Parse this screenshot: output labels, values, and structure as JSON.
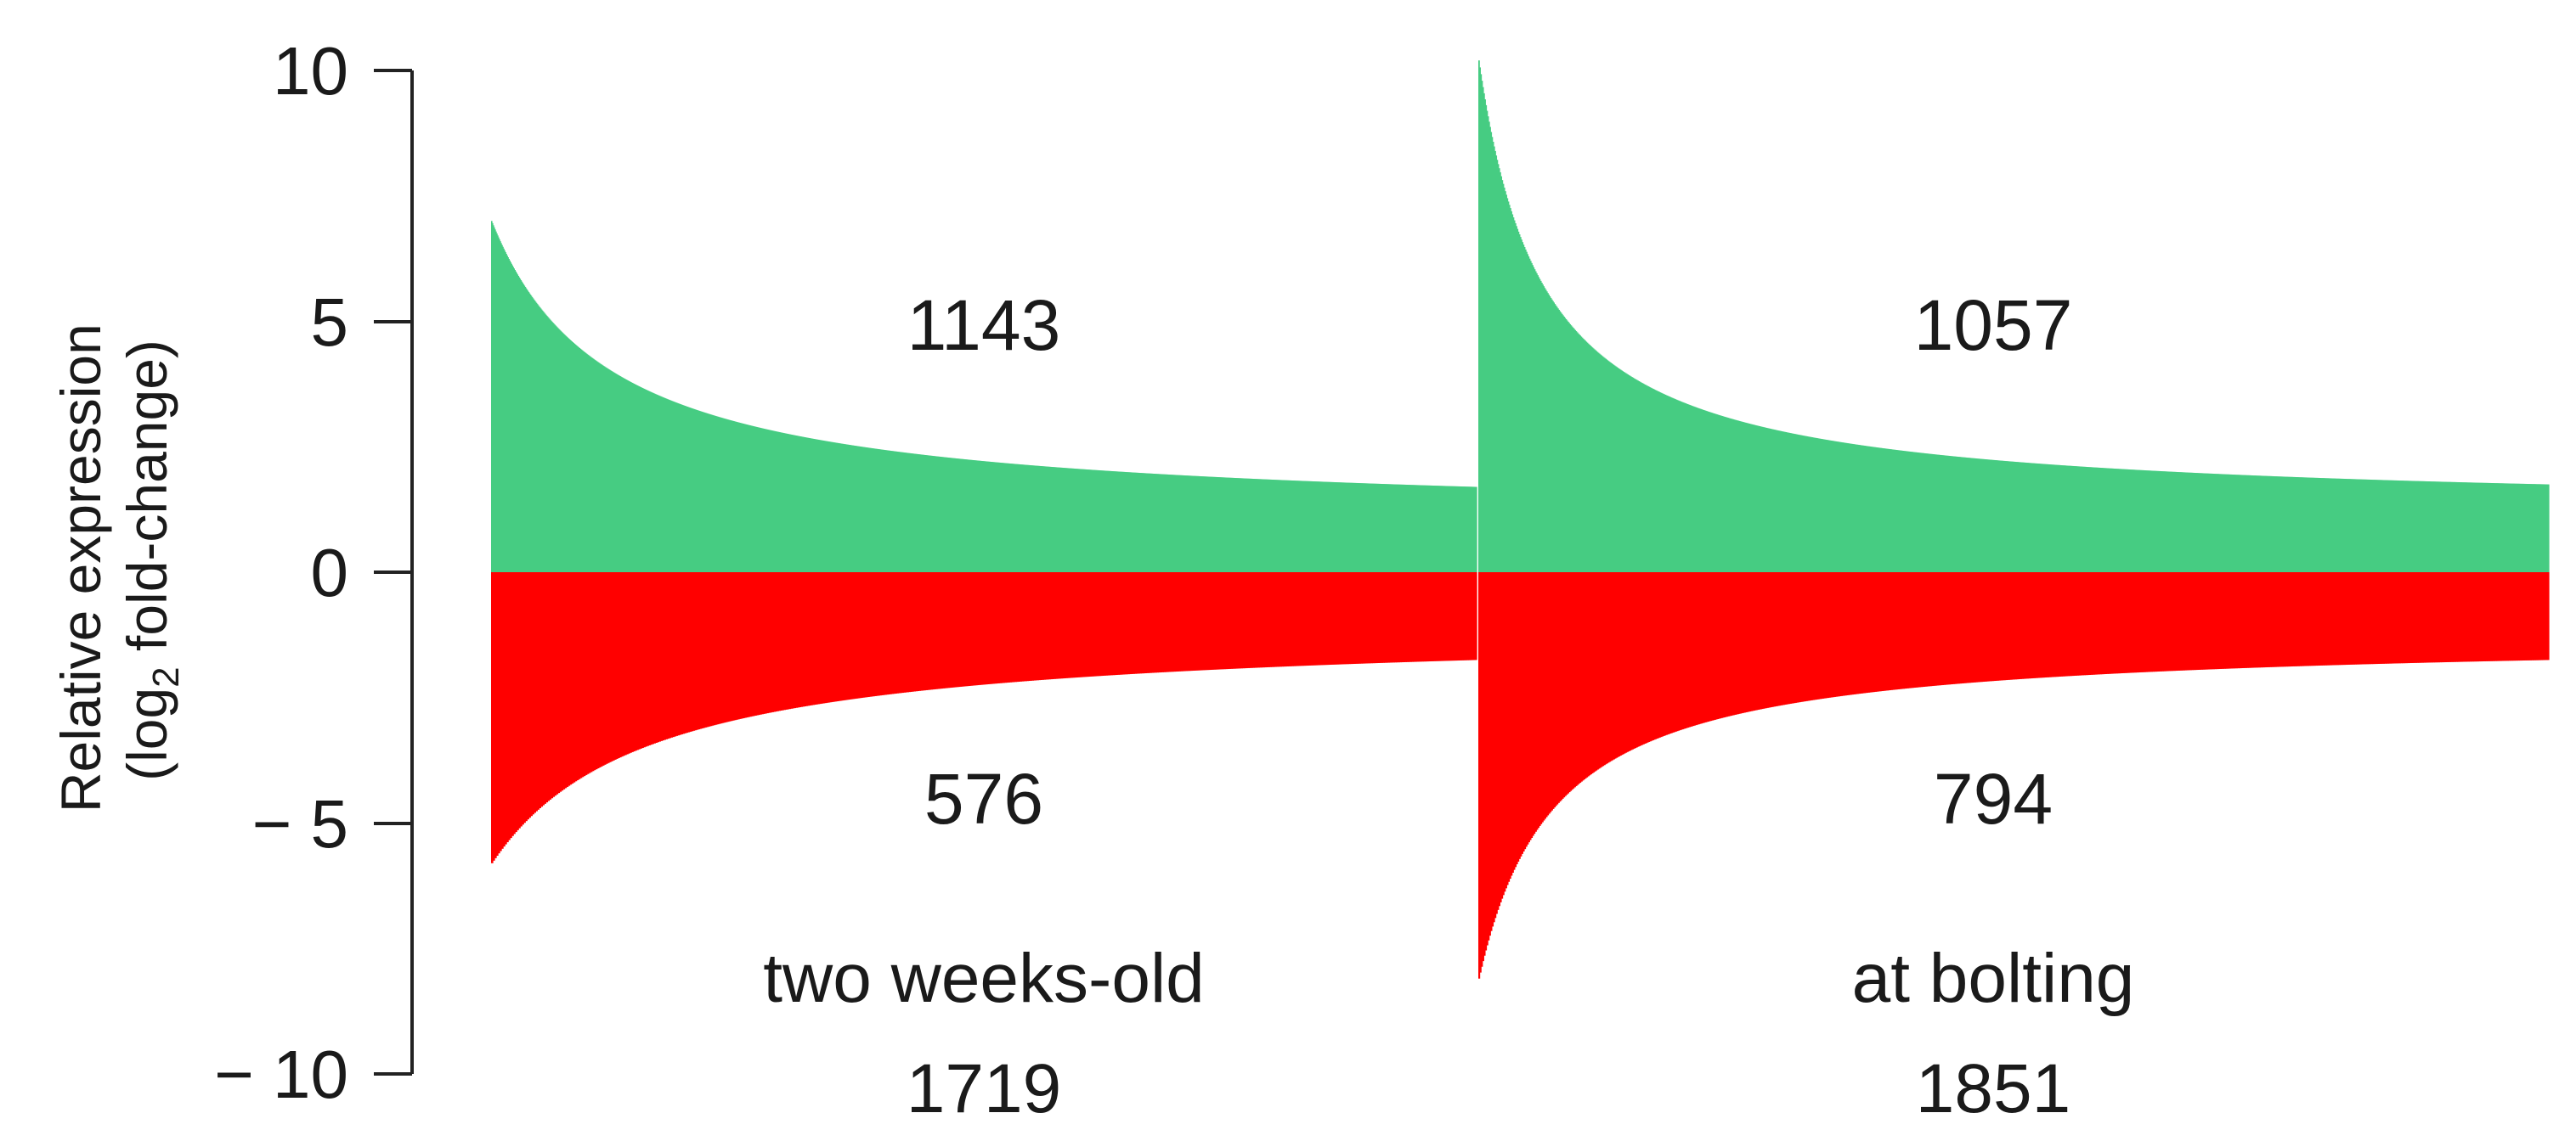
{
  "chart_data": {
    "type": "bar",
    "title": "",
    "ylabel": {
      "line1": "Relative expression",
      "line2_prefix": "(log",
      "line2_sub": "2",
      "line2_suffix": " fold-change)"
    },
    "ylim": [
      -10,
      10
    ],
    "yticks": [
      {
        "value": 10,
        "label": "10"
      },
      {
        "value": 5,
        "label": "5"
      },
      {
        "value": 0,
        "label": "0"
      },
      {
        "value": -5,
        "label": "− 5"
      },
      {
        "value": -10,
        "label": "− 10"
      }
    ],
    "grid": false,
    "colors": {
      "up": "#46CC82",
      "down": "#FF0000",
      "axis": "#222222"
    },
    "groups": [
      {
        "name": "two weeks-old",
        "total": "1719",
        "up": {
          "count": "1143",
          "peak": 7.0,
          "end": 1.7,
          "decay": 0.12
        },
        "down": {
          "count": "576",
          "peak": -5.8,
          "end": -1.75,
          "decay": 0.16
        }
      },
      {
        "name": "at bolting",
        "total": "1851",
        "up": {
          "count": "1057",
          "peak": 10.2,
          "end": 1.75,
          "decay": 0.06
        },
        "down": {
          "count": "794",
          "peak": -8.1,
          "end": -1.75,
          "decay": 0.07
        }
      }
    ]
  }
}
